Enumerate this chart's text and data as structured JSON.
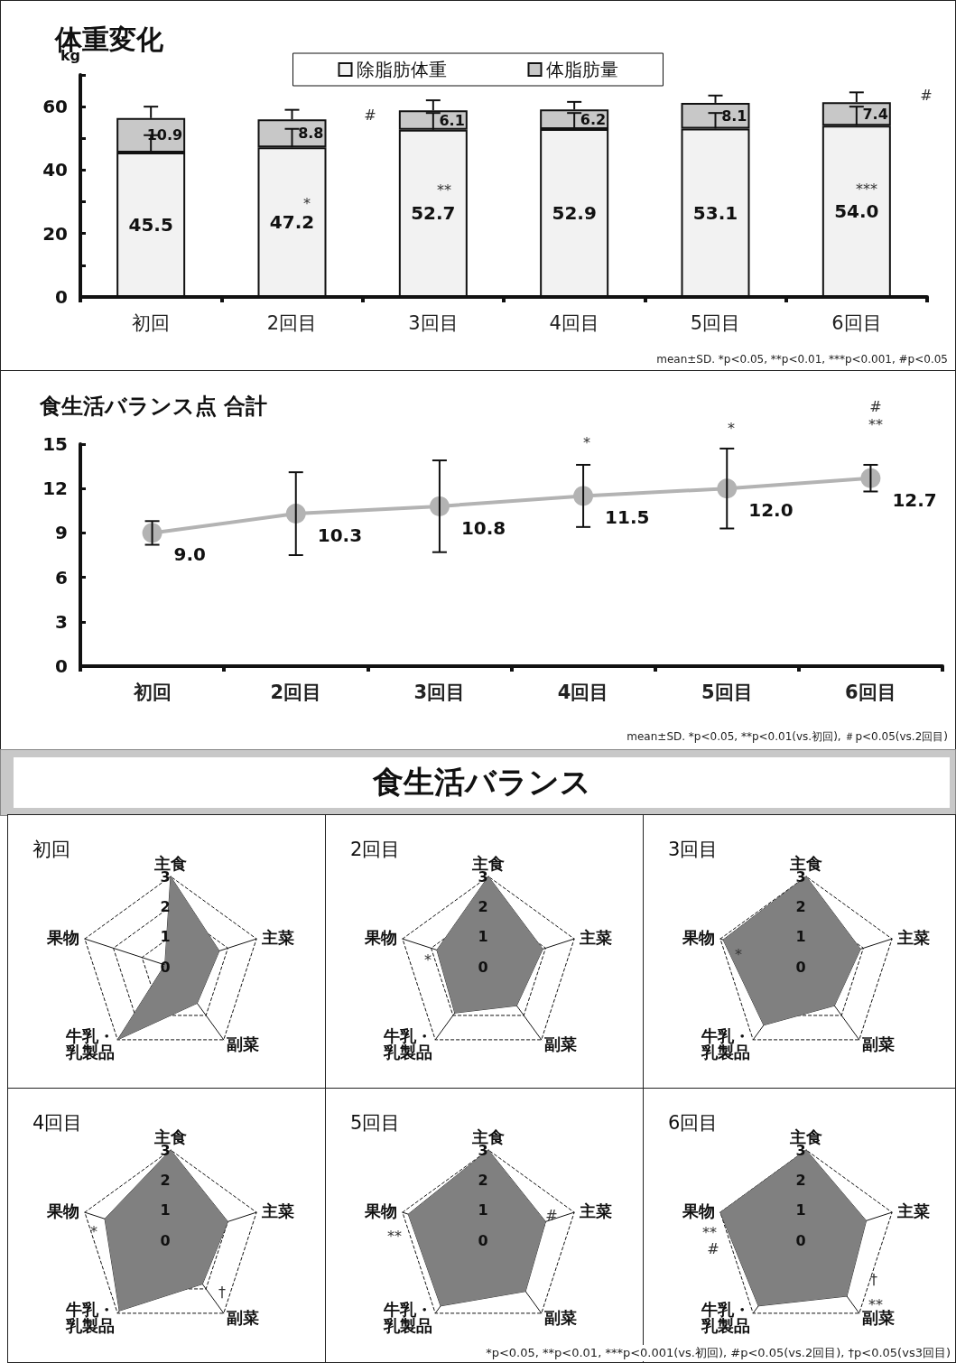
{
  "chart_data": [
    {
      "type": "bar",
      "title": "体重変化",
      "ylabel": "kg",
      "stacked": true,
      "data_labels": true,
      "legend": "top",
      "categories": [
        "初回",
        "2回目",
        "3回目",
        "4回目",
        "5回目",
        "6回目"
      ],
      "series": [
        {
          "name": "除脂肪体重",
          "color": "#f2f2f2",
          "values": [
            45.5,
            47.2,
            52.7,
            52.9,
            53.1,
            54.0
          ],
          "value_labels": [
            "45.5",
            "47.2",
            "52.7",
            "52.9",
            "53.1",
            "54.0"
          ],
          "errors": [
            [
              45.5,
              51.0
            ],
            [
              47.2,
              53.0
            ],
            [
              52.7,
              58.0
            ],
            [
              52.9,
              58.0
            ],
            [
              53.1,
              58.0
            ],
            [
              54.0,
              60.0
            ]
          ]
        },
        {
          "name": "体脂肪量",
          "color": "#c8c8c8",
          "values": [
            10.9,
            8.8,
            6.1,
            6.2,
            8.1,
            7.4
          ],
          "value_labels": [
            "10.9",
            "8.8",
            "6.1",
            "6.2",
            "8.1",
            "7.4"
          ],
          "errors": [
            [
              56.4,
              60.0
            ],
            [
              56.0,
              59.0
            ],
            [
              58.8,
              62.0
            ],
            [
              59.1,
              61.5
            ],
            [
              61.2,
              63.5
            ],
            [
              61.4,
              64.5
            ]
          ]
        }
      ],
      "ylim": [
        0,
        70
      ],
      "yticks": [
        0,
        {
          "value": 10,
          "label": null
        },
        20,
        {
          "value": 30,
          "label": null
        },
        40,
        {
          "value": 50,
          "label": null
        },
        60,
        {
          "value": 70,
          "label": null
        }
      ],
      "annotations": [
        "*",
        "**",
        "***",
        "#",
        "#",
        "mean±SD. *p<0.05, **p<0.01, ***p<0.001, #p<0.05"
      ]
    },
    {
      "type": "line",
      "title": "食生活バランス点 合計",
      "marker": "circle",
      "data_labels": true,
      "categories": [
        "初回",
        "2回目",
        "3回目",
        "4回目",
        "5回目",
        "6回目"
      ],
      "series": [
        {
          "color": "#b3b3b3",
          "values": [
            9.0,
            10.3,
            10.8,
            11.5,
            12.0,
            12.7
          ],
          "value_labels": [
            "9.0",
            "10.3",
            "10.8",
            "11.5",
            "12.0",
            "12.7"
          ],
          "errors": [
            0.8,
            2.8,
            3.1,
            2.1,
            2.7,
            0.9
          ]
        }
      ],
      "ylim": [
        0,
        15
      ],
      "yticks": [
        0,
        3,
        6,
        9,
        12,
        15
      ],
      "annotations": [
        "*",
        "*",
        "**",
        "#",
        "mean±SD. *p<0.05, **p<0.01(vs.初回), ＃p<0.05(vs.2回目)"
      ]
    },
    {
      "type": "other",
      "title": "食生活バランス"
    },
    {
      "type": "radar",
      "title": "初回",
      "categories": [
        "主食",
        "主菜",
        "副菜",
        "牛乳・乳製品",
        "果物"
      ],
      "ylim": [
        0,
        3
      ],
      "yticks": [
        0,
        1,
        2,
        3
      ],
      "series": [
        {
          "color": "#808080",
          "values": [
            3.0,
            1.7,
            1.5,
            3.0,
            0.2
          ]
        }
      ]
    },
    {
      "type": "radar",
      "title": "2回目",
      "categories": [
        "主食",
        "主菜",
        "副菜",
        "牛乳・乳製品",
        "果物"
      ],
      "ylim": [
        0,
        3
      ],
      "yticks": [
        0,
        1,
        2,
        3
      ],
      "series": [
        {
          "color": "#808080",
          "values": [
            3.0,
            1.9,
            1.6,
            1.9,
            1.8
          ]
        }
      ],
      "annotations": [
        "*"
      ]
    },
    {
      "type": "radar",
      "title": "3回目",
      "categories": [
        "主食",
        "主菜",
        "副菜",
        "牛乳・乳製品",
        "果物"
      ],
      "ylim": [
        0,
        3
      ],
      "yticks": [
        0,
        1,
        2,
        3
      ],
      "series": [
        {
          "color": "#808080",
          "values": [
            3.0,
            1.9,
            1.6,
            2.4,
            2.9
          ]
        }
      ],
      "annotations": [
        "*"
      ]
    },
    {
      "type": "radar",
      "title": "4回目",
      "categories": [
        "主食",
        "主菜",
        "副菜",
        "牛乳・乳製品",
        "果物"
      ],
      "ylim": [
        0,
        3
      ],
      "yticks": [
        0,
        1,
        2,
        3
      ],
      "series": [
        {
          "color": "#808080",
          "values": [
            3.0,
            2.0,
            1.8,
            2.9,
            2.3
          ]
        }
      ],
      "annotations": [
        "*",
        "†"
      ]
    },
    {
      "type": "radar",
      "title": "5回目",
      "categories": [
        "主食",
        "主菜",
        "副菜",
        "牛乳・乳製品",
        "果物"
      ],
      "ylim": [
        0,
        3
      ],
      "yticks": [
        0,
        1,
        2,
        3
      ],
      "series": [
        {
          "color": "#808080",
          "values": [
            3.0,
            2.0,
            2.1,
            2.7,
            2.8
          ]
        }
      ],
      "annotations": [
        "**",
        "#"
      ]
    },
    {
      "type": "radar",
      "title": "6回目",
      "categories": [
        "主食",
        "主菜",
        "副菜",
        "牛乳・乳製品",
        "果物"
      ],
      "ylim": [
        0,
        3
      ],
      "yticks": [
        0,
        1,
        2,
        3
      ],
      "series": [
        {
          "color": "#808080",
          "values": [
            3.0,
            2.1,
            2.3,
            2.7,
            3.0
          ]
        }
      ],
      "annotations": [
        "**",
        "#",
        "†",
        "**",
        "*p<0.05, **p<0.01, ***p<0.001(vs.初回), #p<0.05(vs.2回目), †p<0.05(vs3回目)"
      ]
    }
  ]
}
